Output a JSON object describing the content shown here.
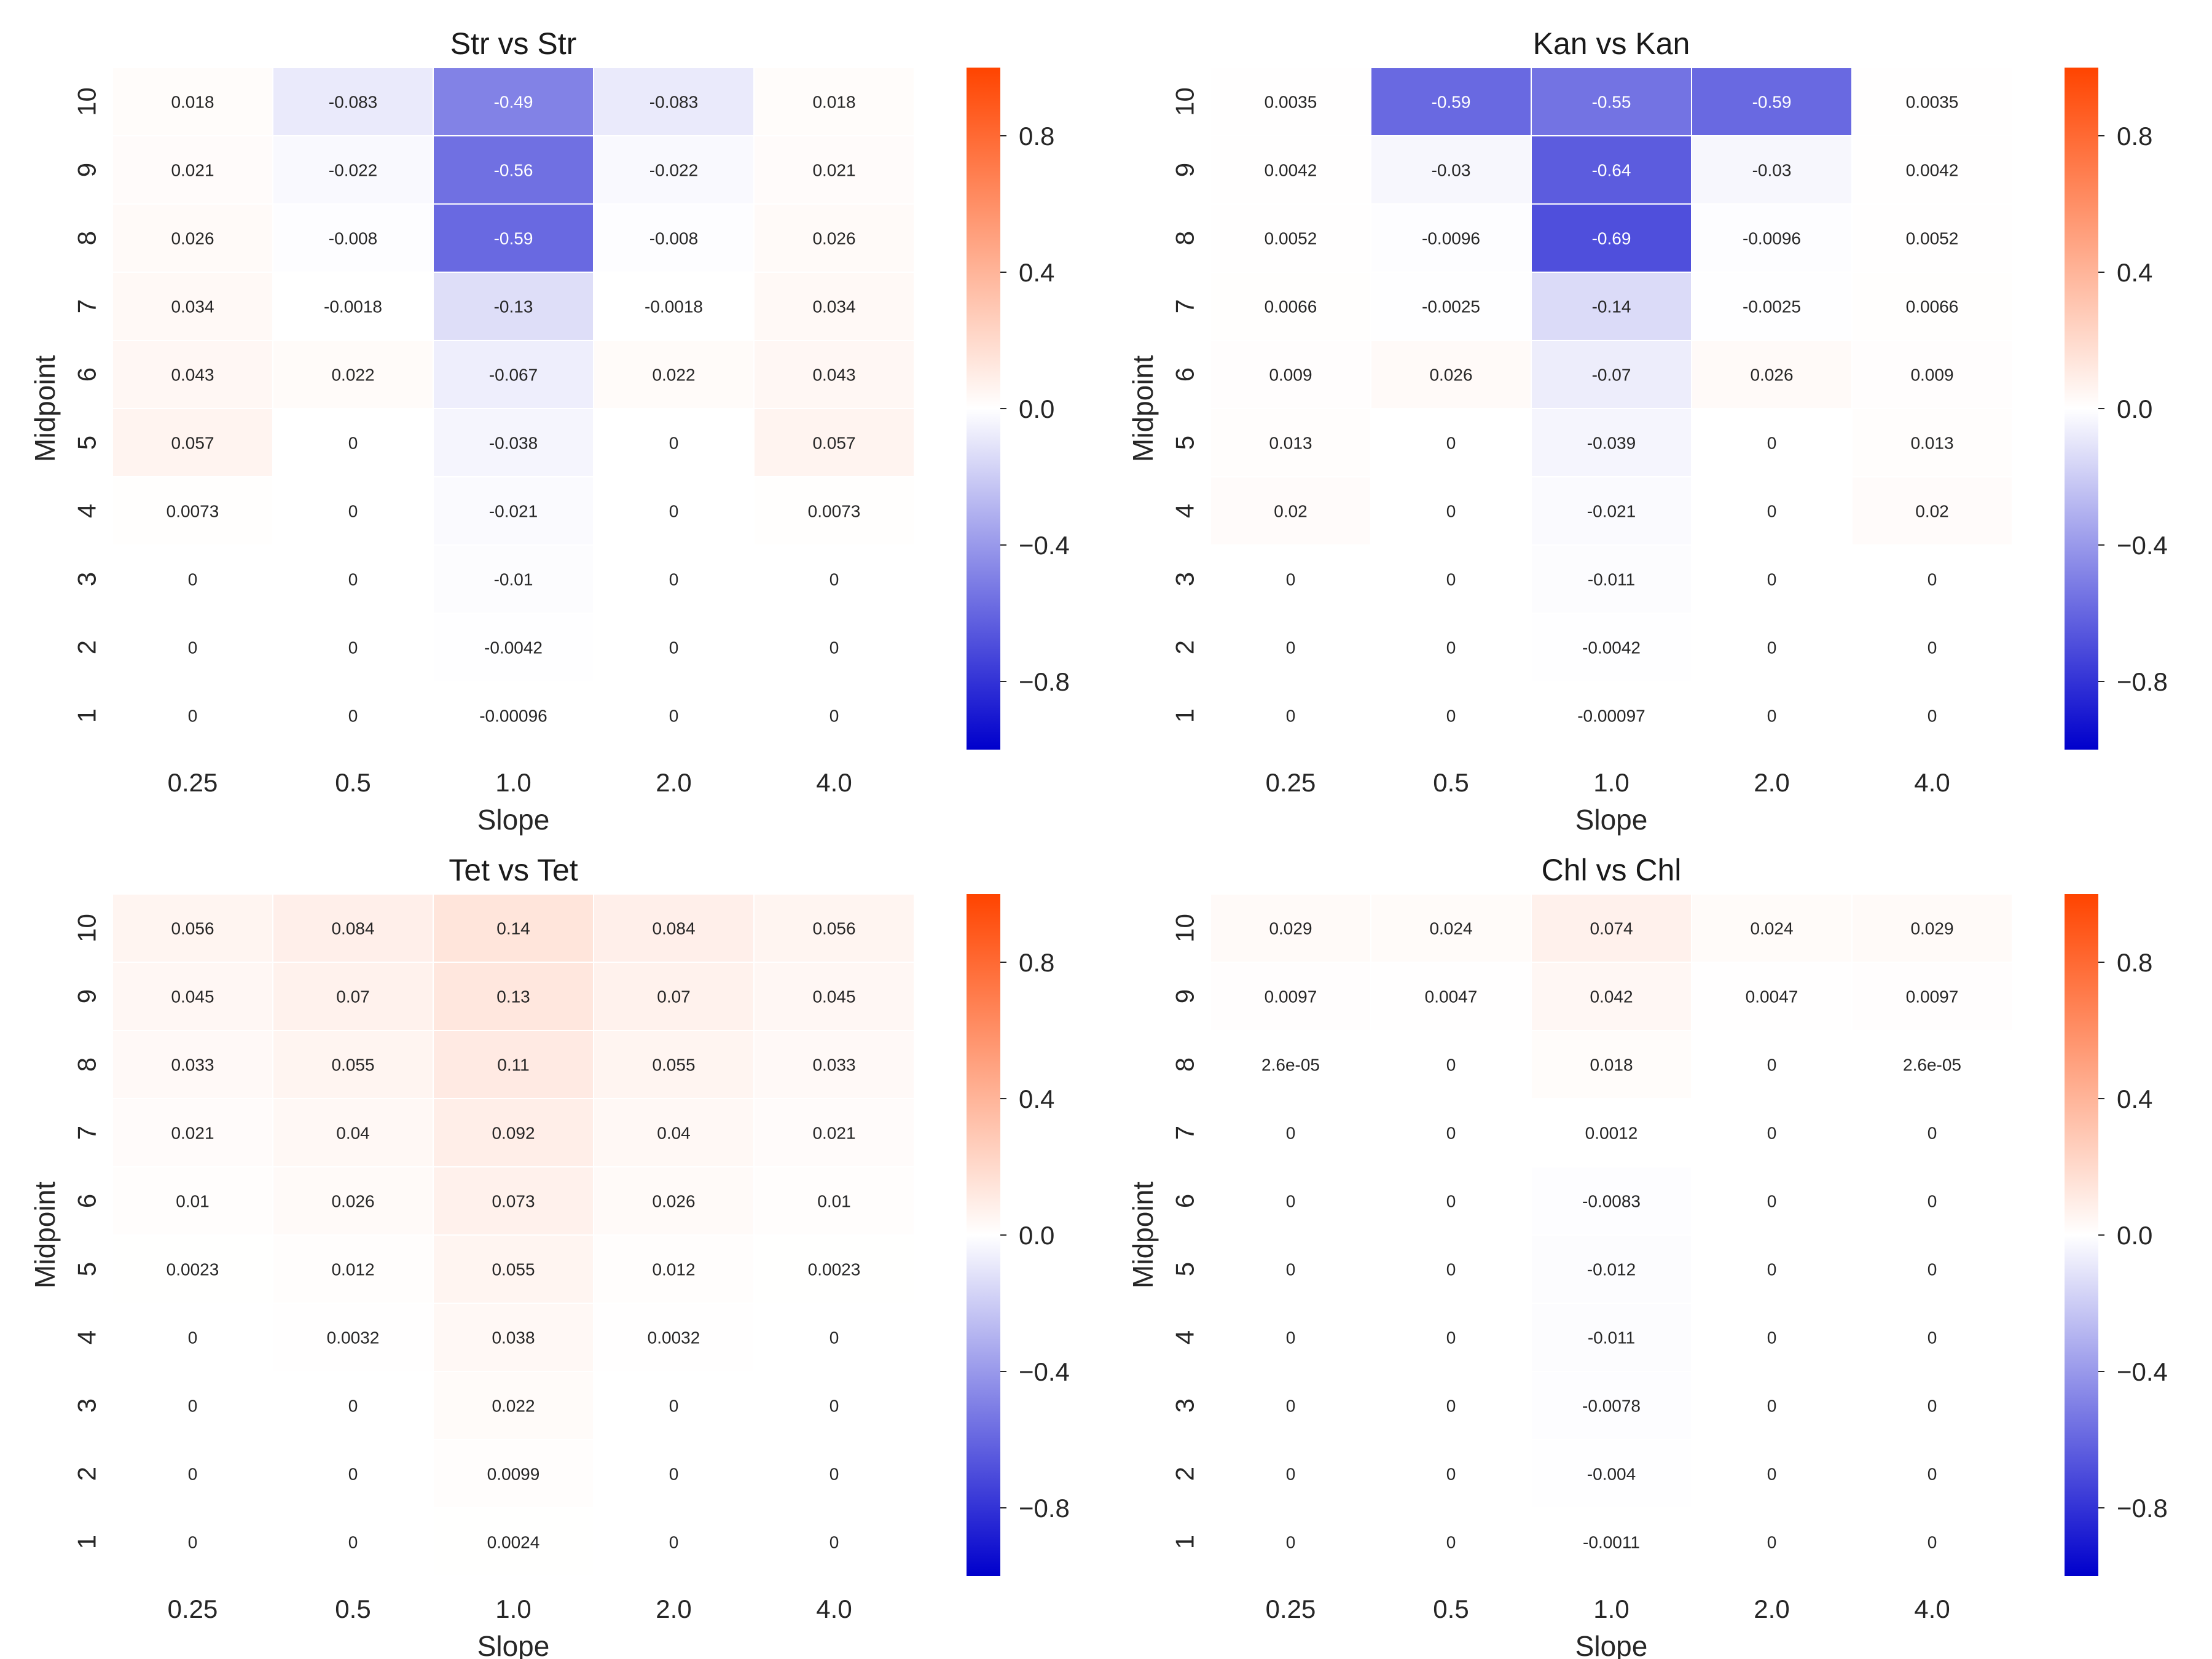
{
  "chart_data": [
    {
      "type": "heatmap",
      "title": "Str vs Str",
      "xlabel": "Slope",
      "ylabel": "Midpoint",
      "x_categories": [
        "0.25",
        "0.5",
        "1.0",
        "2.0",
        "4.0"
      ],
      "y_categories": [
        "10",
        "9",
        "8",
        "7",
        "6",
        "5",
        "4",
        "3",
        "2",
        "1"
      ],
      "values": [
        [
          "0.018",
          "-0.083",
          "-0.49",
          "-0.083",
          "0.018"
        ],
        [
          "0.021",
          "-0.022",
          "-0.56",
          "-0.022",
          "0.021"
        ],
        [
          "0.026",
          "-0.008",
          "-0.59",
          "-0.008",
          "0.026"
        ],
        [
          "0.034",
          "-0.0018",
          "-0.13",
          "-0.0018",
          "0.034"
        ],
        [
          "0.043",
          "0.022",
          "-0.067",
          "0.022",
          "0.043"
        ],
        [
          "0.057",
          "0",
          "-0.038",
          "0",
          "0.057"
        ],
        [
          "0.0073",
          "0",
          "-0.021",
          "0",
          "0.0073"
        ],
        [
          "0",
          "0",
          "-0.01",
          "0",
          "0"
        ],
        [
          "0",
          "0",
          "-0.0042",
          "0",
          "0"
        ],
        [
          "0",
          "0",
          "-0.00096",
          "0",
          "0"
        ]
      ],
      "colorbar": {
        "vmin": -1,
        "vmax": 1,
        "ticks": [
          "0.8",
          "0.4",
          "0.0",
          "−0.4",
          "−0.8"
        ],
        "tick_values": [
          0.8,
          0.4,
          0.0,
          -0.4,
          -0.8
        ]
      }
    },
    {
      "type": "heatmap",
      "title": "Kan vs Kan",
      "xlabel": "Slope",
      "ylabel": "Midpoint",
      "x_categories": [
        "0.25",
        "0.5",
        "1.0",
        "2.0",
        "4.0"
      ],
      "y_categories": [
        "10",
        "9",
        "8",
        "7",
        "6",
        "5",
        "4",
        "3",
        "2",
        "1"
      ],
      "values": [
        [
          "0.0035",
          "-0.59",
          "-0.55",
          "-0.59",
          "0.0035"
        ],
        [
          "0.0042",
          "-0.03",
          "-0.64",
          "-0.03",
          "0.0042"
        ],
        [
          "0.0052",
          "-0.0096",
          "-0.69",
          "-0.0096",
          "0.0052"
        ],
        [
          "0.0066",
          "-0.0025",
          "-0.14",
          "-0.0025",
          "0.0066"
        ],
        [
          "0.009",
          "0.026",
          "-0.07",
          "0.026",
          "0.009"
        ],
        [
          "0.013",
          "0",
          "-0.039",
          "0",
          "0.013"
        ],
        [
          "0.02",
          "0",
          "-0.021",
          "0",
          "0.02"
        ],
        [
          "0",
          "0",
          "-0.011",
          "0",
          "0"
        ],
        [
          "0",
          "0",
          "-0.0042",
          "0",
          "0"
        ],
        [
          "0",
          "0",
          "-0.00097",
          "0",
          "0"
        ]
      ],
      "colorbar": {
        "vmin": -1,
        "vmax": 1,
        "ticks": [
          "0.8",
          "0.4",
          "0.0",
          "−0.4",
          "−0.8"
        ],
        "tick_values": [
          0.8,
          0.4,
          0.0,
          -0.4,
          -0.8
        ]
      }
    },
    {
      "type": "heatmap",
      "title": "Tet vs Tet",
      "xlabel": "Slope",
      "ylabel": "Midpoint",
      "x_categories": [
        "0.25",
        "0.5",
        "1.0",
        "2.0",
        "4.0"
      ],
      "y_categories": [
        "10",
        "9",
        "8",
        "7",
        "6",
        "5",
        "4",
        "3",
        "2",
        "1"
      ],
      "values": [
        [
          "0.056",
          "0.084",
          "0.14",
          "0.084",
          "0.056"
        ],
        [
          "0.045",
          "0.07",
          "0.13",
          "0.07",
          "0.045"
        ],
        [
          "0.033",
          "0.055",
          "0.11",
          "0.055",
          "0.033"
        ],
        [
          "0.021",
          "0.04",
          "0.092",
          "0.04",
          "0.021"
        ],
        [
          "0.01",
          "0.026",
          "0.073",
          "0.026",
          "0.01"
        ],
        [
          "0.0023",
          "0.012",
          "0.055",
          "0.012",
          "0.0023"
        ],
        [
          "0",
          "0.0032",
          "0.038",
          "0.0032",
          "0"
        ],
        [
          "0",
          "0",
          "0.022",
          "0",
          "0"
        ],
        [
          "0",
          "0",
          "0.0099",
          "0",
          "0"
        ],
        [
          "0",
          "0",
          "0.0024",
          "0",
          "0"
        ]
      ],
      "colorbar": {
        "vmin": -1,
        "vmax": 1,
        "ticks": [
          "0.8",
          "0.4",
          "0.0",
          "−0.4",
          "−0.8"
        ],
        "tick_values": [
          0.8,
          0.4,
          0.0,
          -0.4,
          -0.8
        ]
      }
    },
    {
      "type": "heatmap",
      "title": "Chl vs Chl",
      "xlabel": "Slope",
      "ylabel": "Midpoint",
      "x_categories": [
        "0.25",
        "0.5",
        "1.0",
        "2.0",
        "4.0"
      ],
      "y_categories": [
        "10",
        "9",
        "8",
        "7",
        "6",
        "5",
        "4",
        "3",
        "2",
        "1"
      ],
      "values": [
        [
          "0.029",
          "0.024",
          "0.074",
          "0.024",
          "0.029"
        ],
        [
          "0.0097",
          "0.0047",
          "0.042",
          "0.0047",
          "0.0097"
        ],
        [
          "2.6e-05",
          "0",
          "0.018",
          "0",
          "2.6e-05"
        ],
        [
          "0",
          "0",
          "0.0012",
          "0",
          "0"
        ],
        [
          "0",
          "0",
          "-0.0083",
          "0",
          "0"
        ],
        [
          "0",
          "0",
          "-0.012",
          "0",
          "0"
        ],
        [
          "0",
          "0",
          "-0.011",
          "0",
          "0"
        ],
        [
          "0",
          "0",
          "-0.0078",
          "0",
          "0"
        ],
        [
          "0",
          "0",
          "-0.004",
          "0",
          "0"
        ],
        [
          "0",
          "0",
          "-0.0011",
          "0",
          "0"
        ]
      ],
      "colorbar": {
        "vmin": -1,
        "vmax": 1,
        "ticks": [
          "0.8",
          "0.4",
          "0.0",
          "−0.4",
          "−0.8"
        ],
        "tick_values": [
          0.8,
          0.4,
          0.0,
          -0.4,
          -0.8
        ]
      }
    }
  ],
  "colormap": {
    "negative": "#0000cc",
    "neutral": "#ffffff",
    "positive": "#ff4400"
  }
}
